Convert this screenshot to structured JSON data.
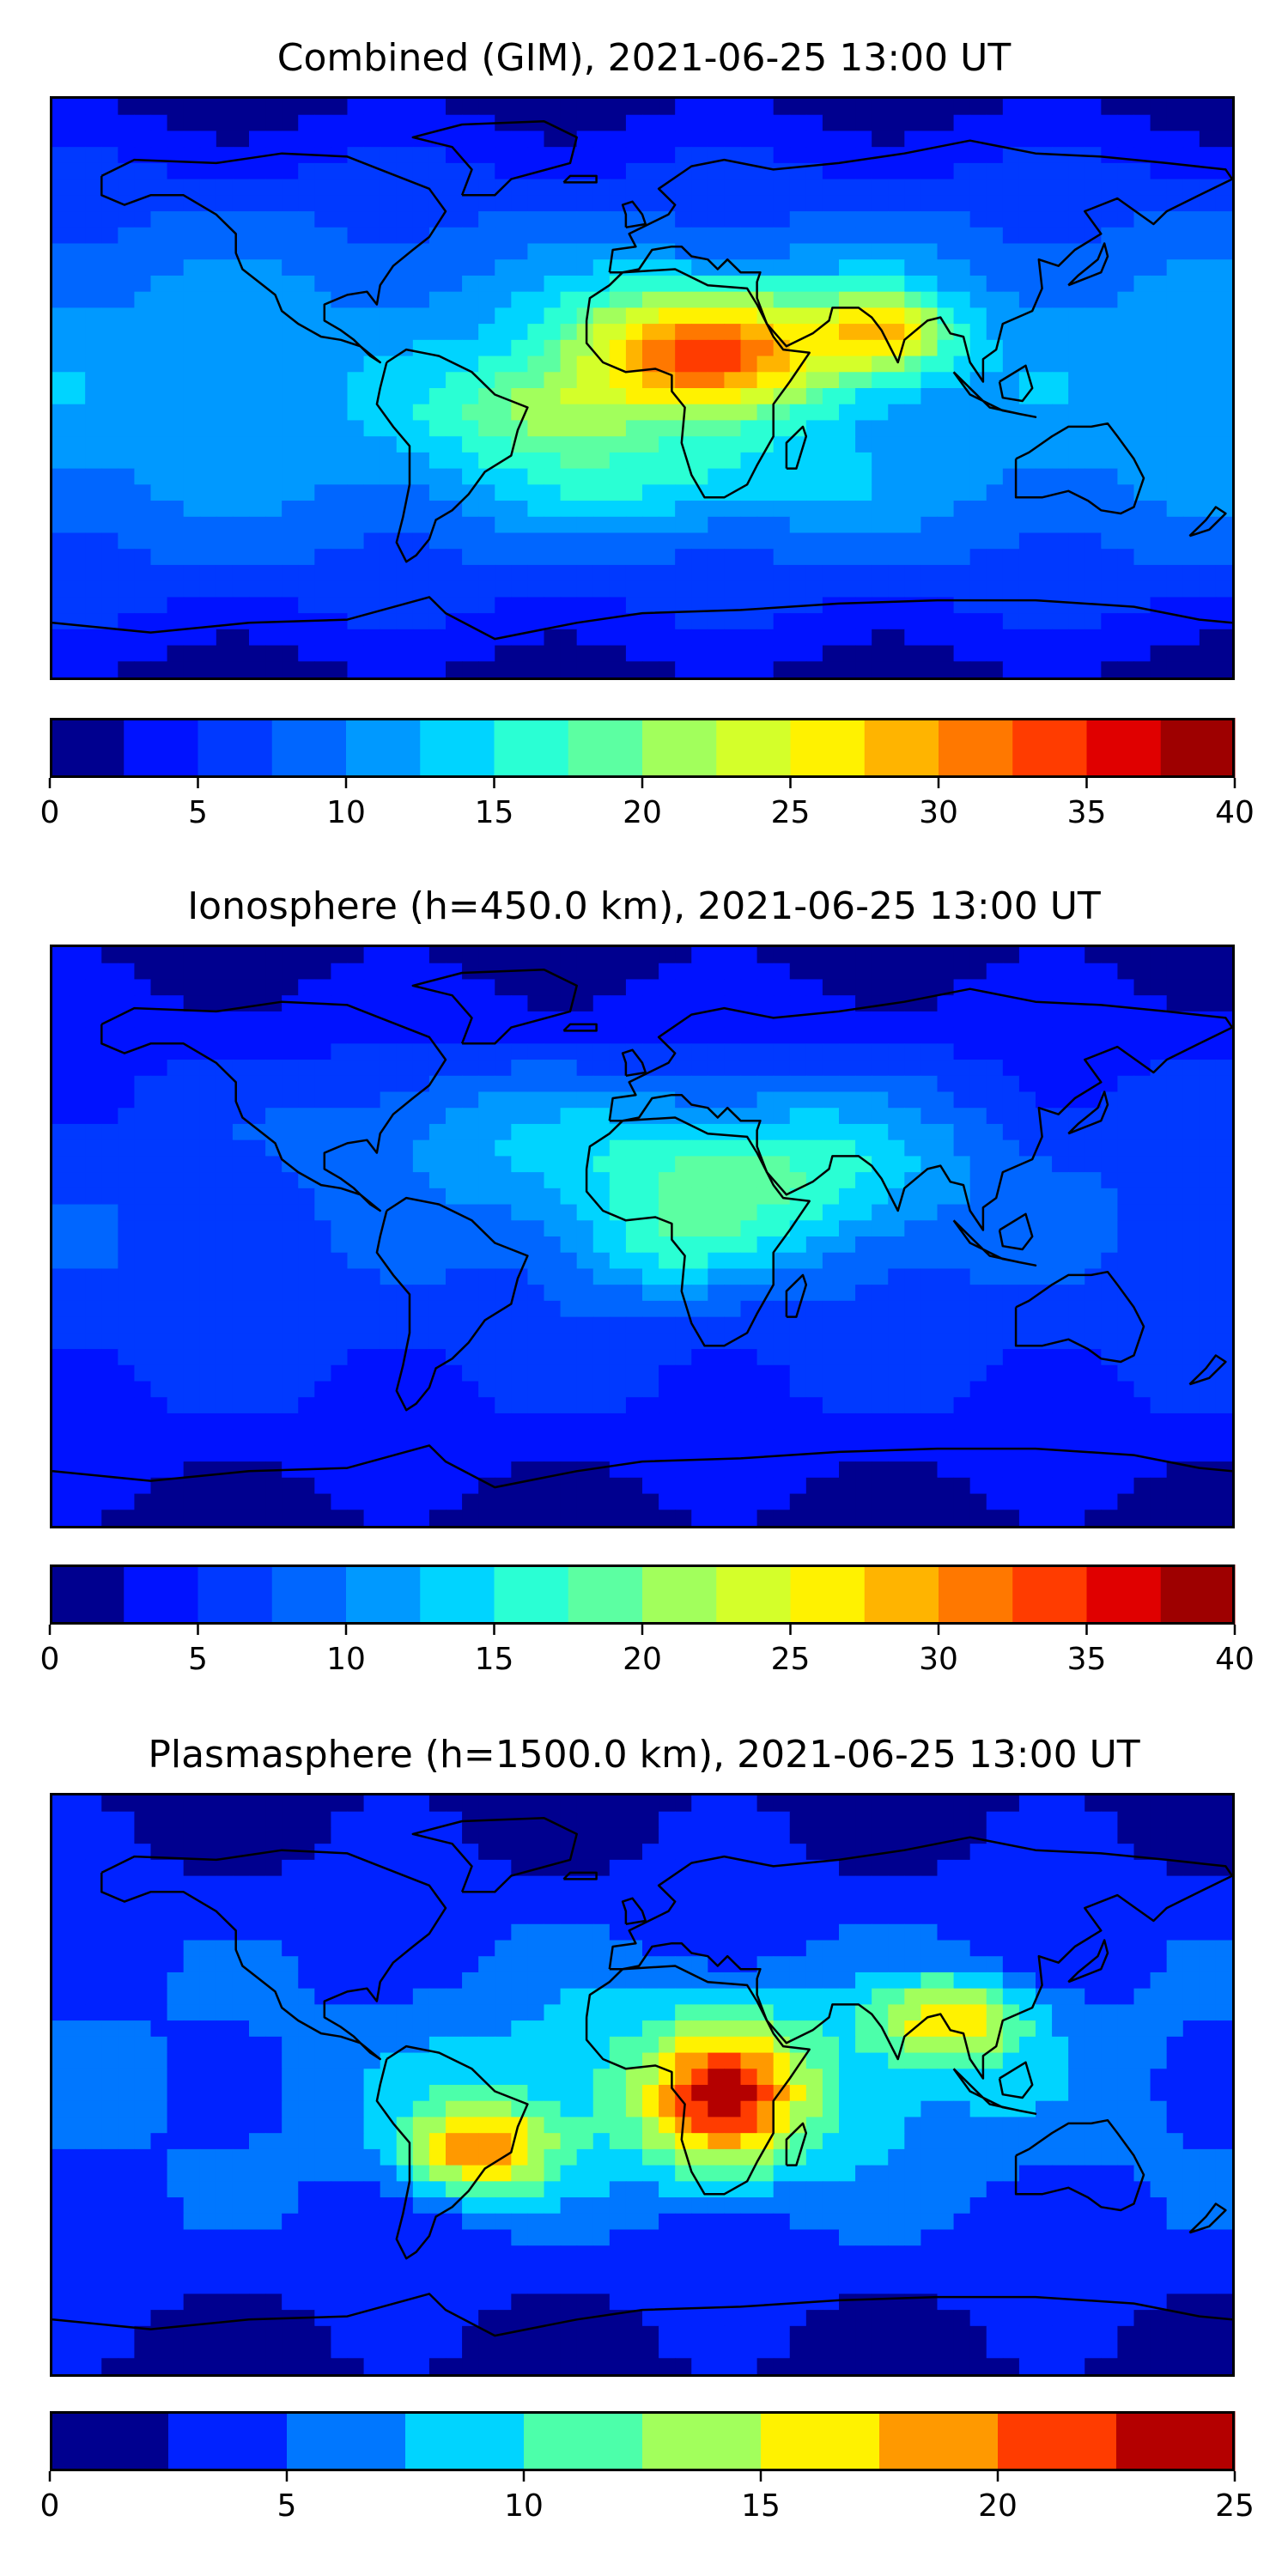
{
  "chart_data": [
    {
      "type": "heatmap",
      "title": "Combined (GIM), 2021-06-25 13:00 UT",
      "colorbar": {
        "levels": [
          0,
          2.5,
          5,
          7.5,
          10,
          12.5,
          15,
          17.5,
          20,
          22.5,
          25,
          27.5,
          30,
          32.5,
          35,
          37.5,
          40
        ],
        "ticks": [
          0,
          5,
          10,
          15,
          20,
          25,
          30,
          35,
          40
        ],
        "tick_labels": [
          "0",
          "5",
          "10",
          "15",
          "20",
          "25",
          "30",
          "35",
          "40"
        ],
        "colors": [
          "#00008f",
          "#0012ff",
          "#0039ff",
          "#0066ff",
          "#0099ff",
          "#00d4ff",
          "#2affd4",
          "#5cffa2",
          "#a2ff5c",
          "#d4ff2a",
          "#fff200",
          "#ffb400",
          "#ff7800",
          "#ff3c00",
          "#e00000",
          "#9e0000"
        ]
      },
      "field_features": [
        {
          "lon": 20,
          "lat": 12,
          "sx": 30,
          "sy": 14,
          "amp": 22
        },
        {
          "lon": 75,
          "lat": 18,
          "sx": 14,
          "sy": 9,
          "amp": 14
        },
        {
          "lon": -30,
          "lat": -8,
          "sx": 24,
          "sy": 11,
          "amp": 9
        },
        {
          "lon": 10,
          "lat": -30,
          "sx": 40,
          "sy": 10,
          "amp": 5
        }
      ],
      "field_base": 11
    },
    {
      "type": "heatmap",
      "title": "Ionosphere  (h=450.0 km), 2021-06-25 13:00 UT",
      "colorbar": {
        "levels": [
          0,
          2.5,
          5,
          7.5,
          10,
          12.5,
          15,
          17.5,
          20,
          22.5,
          25,
          27.5,
          30,
          32.5,
          35,
          37.5,
          40
        ],
        "ticks": [
          0,
          5,
          10,
          15,
          20,
          25,
          30,
          35,
          40
        ],
        "tick_labels": [
          "0",
          "5",
          "10",
          "15",
          "20",
          "25",
          "30",
          "35",
          "40"
        ],
        "colors": [
          "#00008f",
          "#0012ff",
          "#0039ff",
          "#0066ff",
          "#0099ff",
          "#00d4ff",
          "#2affd4",
          "#5cffa2",
          "#a2ff5c",
          "#d4ff2a",
          "#fff200",
          "#ffb400",
          "#ff7800",
          "#ff3c00",
          "#e00000",
          "#9e0000"
        ]
      },
      "field_features": [
        {
          "lon": 30,
          "lat": 20,
          "sx": 45,
          "sy": 18,
          "amp": 12
        },
        {
          "lon": 5,
          "lat": -5,
          "sx": 20,
          "sy": 10,
          "amp": 5
        },
        {
          "lon": -60,
          "lat": 35,
          "sx": 30,
          "sy": 15,
          "amp": 4
        }
      ],
      "field_base": 6
    },
    {
      "type": "heatmap",
      "title": "Plasmasphere (h=1500.0 km), 2021-06-25 13:00 UT",
      "colorbar": {
        "levels": [
          0,
          2.5,
          5,
          7.5,
          10,
          12.5,
          15,
          17.5,
          20,
          22.5,
          25
        ],
        "ticks": [
          0,
          5,
          10,
          15,
          20,
          25
        ],
        "tick_labels": [
          "0",
          "5",
          "10",
          "15",
          "20",
          "25"
        ],
        "colors": [
          "#00008f",
          "#0022ff",
          "#0077ff",
          "#00d4ff",
          "#4cffaa",
          "#a2ff5c",
          "#fff200",
          "#ff9900",
          "#ff3c00",
          "#b40000"
        ]
      },
      "field_features": [
        {
          "lon": -50,
          "lat": -20,
          "sx": 16,
          "sy": 10,
          "amp": 13
        },
        {
          "lon": 25,
          "lat": -5,
          "sx": 16,
          "sy": 16,
          "amp": 12
        },
        {
          "lon": 95,
          "lat": 20,
          "sx": 16,
          "sy": 9,
          "amp": 11
        },
        {
          "lon": 20,
          "lat": 0,
          "sx": 60,
          "sy": 22,
          "amp": 6
        }
      ],
      "field_base": 4
    }
  ]
}
